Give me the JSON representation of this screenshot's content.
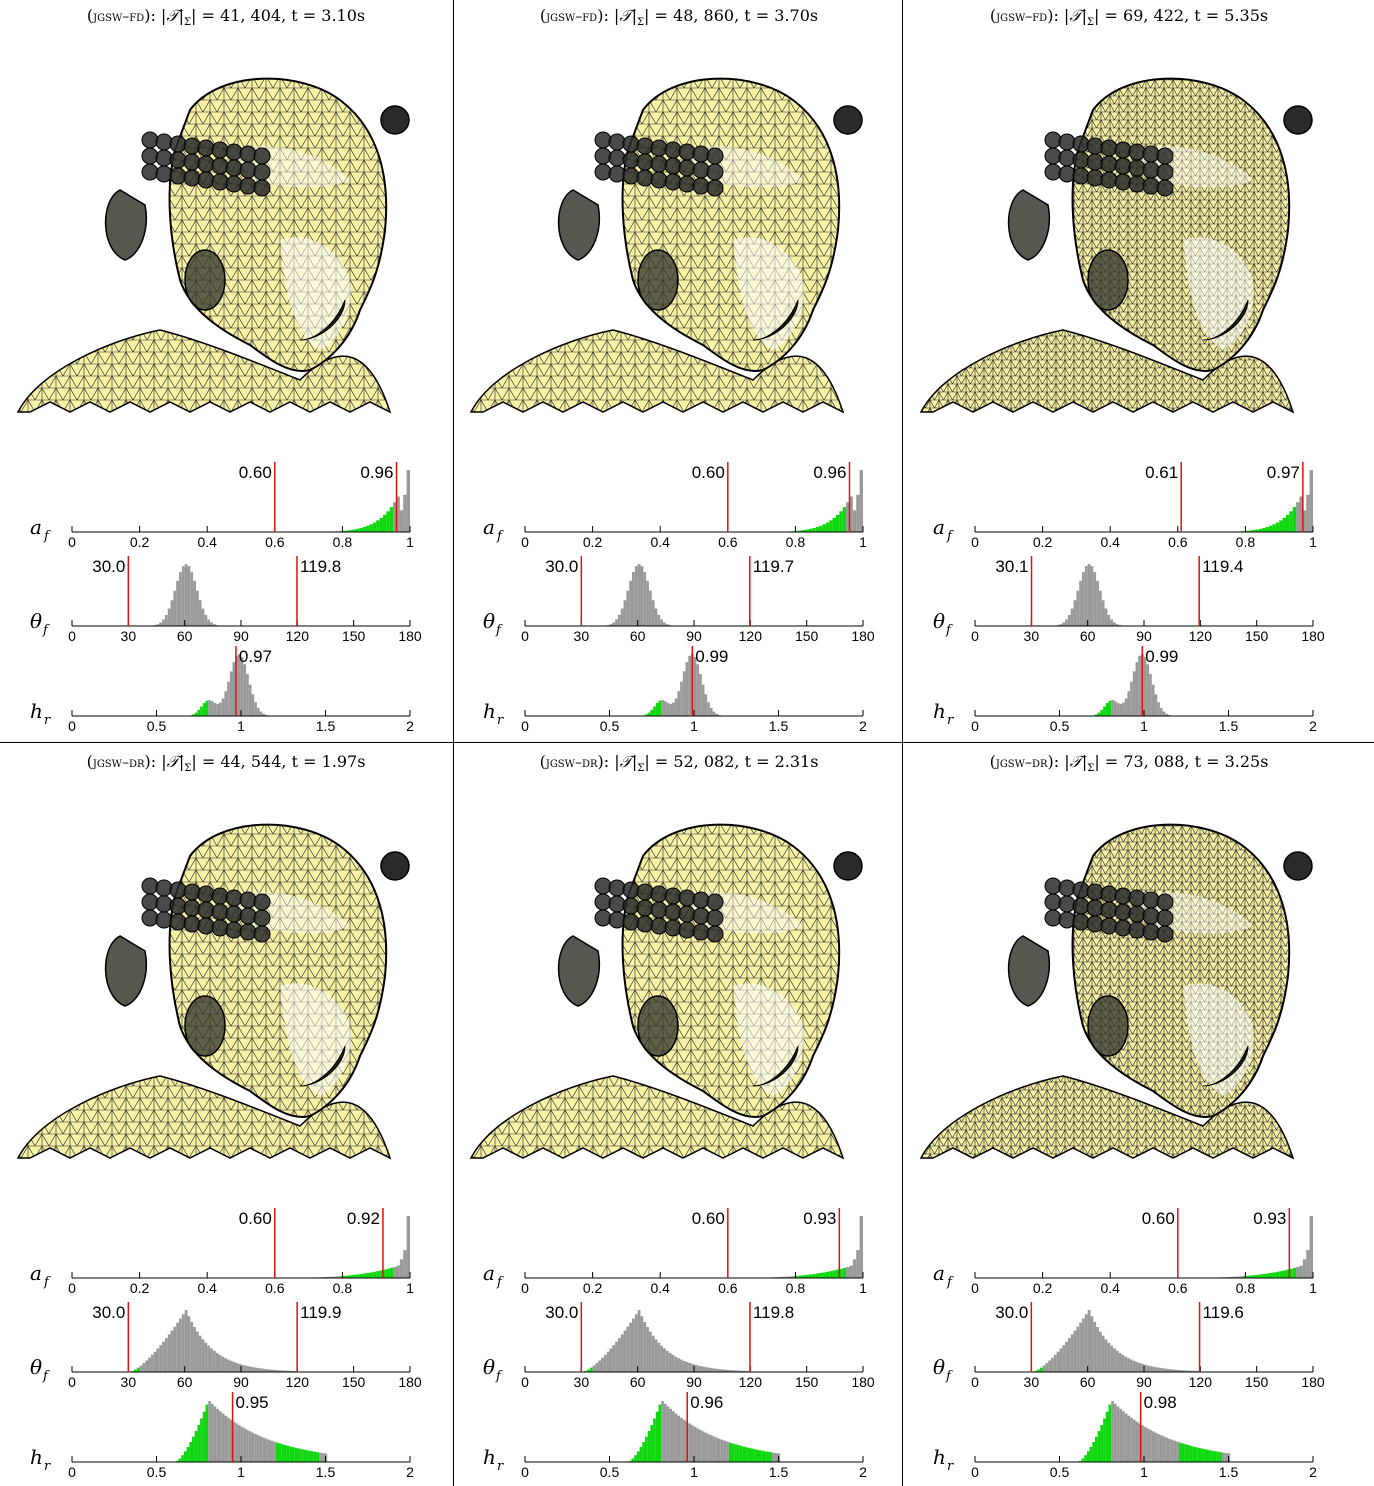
{
  "colors": {
    "mesh_fill": "#f7f2a6",
    "mesh_shade": "#c8c6b0",
    "hist_bar": "#9a9a9a",
    "hist_in_range": "#10d810",
    "marker": "#e01010",
    "hist_outlier": "#f0e020"
  },
  "axis_symbols": {
    "a": "a",
    "a_sub": "f",
    "theta": "θ",
    "theta_sub": "f",
    "h": "h",
    "h_sub": "r"
  },
  "axis_ticks": {
    "a": [
      "0",
      "0.2",
      "0.4",
      "0.6",
      "0.8",
      "1"
    ],
    "theta": [
      "0",
      "30",
      "60",
      "90",
      "120",
      "150",
      "180"
    ],
    "h": [
      "0",
      "0.5",
      "1",
      "1.5",
      "2"
    ]
  },
  "panels": [
    {
      "method": "jgsw–fd",
      "count": "41, 404",
      "time": "3.10s",
      "a_min": "0.60",
      "a_avg": "0.96",
      "theta_min": "30.0",
      "theta_max": "119.8",
      "h_avg": "0.97"
    },
    {
      "method": "jgsw–fd",
      "count": "48, 860",
      "time": "3.70s",
      "a_min": "0.60",
      "a_avg": "0.96",
      "theta_min": "30.0",
      "theta_max": "119.7",
      "h_avg": "0.99"
    },
    {
      "method": "jgsw–fd",
      "count": "69, 422",
      "time": "5.35s",
      "a_min": "0.61",
      "a_avg": "0.97",
      "theta_min": "30.1",
      "theta_max": "119.4",
      "h_avg": "0.99"
    },
    {
      "method": "jgsw–dr",
      "count": "44, 544",
      "time": "1.97s",
      "a_min": "0.60",
      "a_avg": "0.92",
      "theta_min": "30.0",
      "theta_max": "119.9",
      "h_avg": "0.95"
    },
    {
      "method": "jgsw–dr",
      "count": "52, 082",
      "time": "2.31s",
      "a_min": "0.60",
      "a_avg": "0.93",
      "theta_min": "30.0",
      "theta_max": "119.8",
      "h_avg": "0.96"
    },
    {
      "method": "jgsw–dr",
      "count": "73, 088",
      "time": "3.25s",
      "a_min": "0.60",
      "a_avg": "0.93",
      "theta_min": "30.0",
      "theta_max": "119.6",
      "h_avg": "0.98"
    }
  ],
  "chart_data": [
    {
      "type": "bar",
      "panel": 0,
      "metric": "a_f",
      "xlim": [
        0,
        1
      ],
      "markers": [
        0.6,
        0.96
      ]
    },
    {
      "type": "bar",
      "panel": 0,
      "metric": "theta_f",
      "xlim": [
        0,
        180
      ],
      "markers": [
        30.0,
        119.8
      ]
    },
    {
      "type": "bar",
      "panel": 0,
      "metric": "h_r",
      "xlim": [
        0,
        2
      ],
      "markers": [
        0.97
      ]
    },
    {
      "type": "bar",
      "panel": 1,
      "metric": "a_f",
      "xlim": [
        0,
        1
      ],
      "markers": [
        0.6,
        0.96
      ]
    },
    {
      "type": "bar",
      "panel": 1,
      "metric": "theta_f",
      "xlim": [
        0,
        180
      ],
      "markers": [
        30.0,
        119.7
      ]
    },
    {
      "type": "bar",
      "panel": 1,
      "metric": "h_r",
      "xlim": [
        0,
        2
      ],
      "markers": [
        0.99
      ]
    },
    {
      "type": "bar",
      "panel": 2,
      "metric": "a_f",
      "xlim": [
        0,
        1
      ],
      "markers": [
        0.61,
        0.97
      ]
    },
    {
      "type": "bar",
      "panel": 2,
      "metric": "theta_f",
      "xlim": [
        0,
        180
      ],
      "markers": [
        30.1,
        119.4
      ]
    },
    {
      "type": "bar",
      "panel": 2,
      "metric": "h_r",
      "xlim": [
        0,
        2
      ],
      "markers": [
        0.99
      ]
    },
    {
      "type": "bar",
      "panel": 3,
      "metric": "a_f",
      "xlim": [
        0,
        1
      ],
      "markers": [
        0.6,
        0.92
      ]
    },
    {
      "type": "bar",
      "panel": 3,
      "metric": "theta_f",
      "xlim": [
        0,
        180
      ],
      "markers": [
        30.0,
        119.9
      ]
    },
    {
      "type": "bar",
      "panel": 3,
      "metric": "h_r",
      "xlim": [
        0,
        2
      ],
      "markers": [
        0.95
      ]
    },
    {
      "type": "bar",
      "panel": 4,
      "metric": "a_f",
      "xlim": [
        0,
        1
      ],
      "markers": [
        0.6,
        0.93
      ]
    },
    {
      "type": "bar",
      "panel": 4,
      "metric": "theta_f",
      "xlim": [
        0,
        180
      ],
      "markers": [
        30.0,
        119.8
      ]
    },
    {
      "type": "bar",
      "panel": 4,
      "metric": "h_r",
      "xlim": [
        0,
        2
      ],
      "markers": [
        0.96
      ]
    },
    {
      "type": "bar",
      "panel": 5,
      "metric": "a_f",
      "xlim": [
        0,
        1
      ],
      "markers": [
        0.6,
        0.93
      ]
    },
    {
      "type": "bar",
      "panel": 5,
      "metric": "theta_f",
      "xlim": [
        0,
        180
      ],
      "markers": [
        30.0,
        119.6
      ]
    },
    {
      "type": "bar",
      "panel": 5,
      "metric": "h_r",
      "xlim": [
        0,
        2
      ],
      "markers": [
        0.98
      ]
    }
  ]
}
